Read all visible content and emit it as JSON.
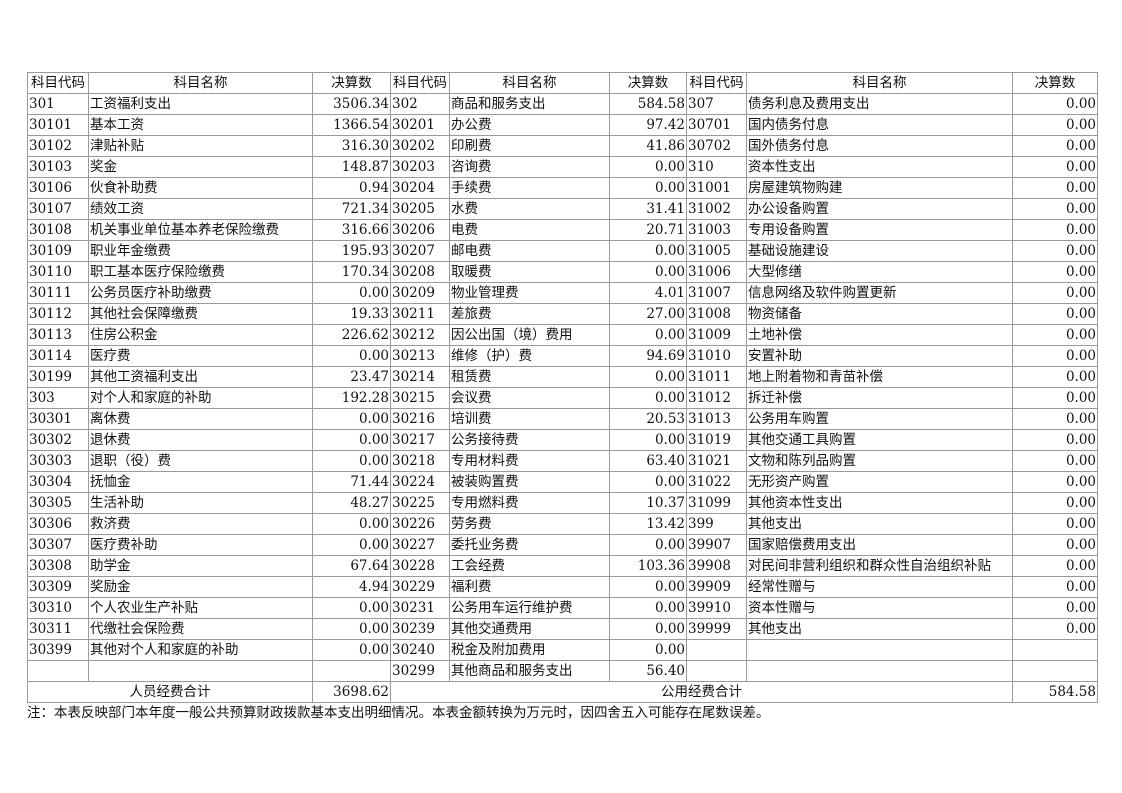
{
  "headers": {
    "code": "科目代码",
    "name": "科目名称",
    "amount": "决算数"
  },
  "rows": [
    [
      [
        "301",
        "工资福利支出",
        "3506.34"
      ],
      [
        "302",
        "商品和服务支出",
        "584.58"
      ],
      [
        "307",
        "债务利息及费用支出",
        "0.00"
      ]
    ],
    [
      [
        "30101",
        "基本工资",
        "1366.54"
      ],
      [
        "30201",
        "办公费",
        "97.42"
      ],
      [
        "30701",
        "国内债务付息",
        "0.00"
      ]
    ],
    [
      [
        "30102",
        "津贴补贴",
        "316.30"
      ],
      [
        "30202",
        "印刷费",
        "41.86"
      ],
      [
        "30702",
        "国外债务付息",
        "0.00"
      ]
    ],
    [
      [
        "30103",
        "奖金",
        "148.87"
      ],
      [
        "30203",
        "咨询费",
        "0.00"
      ],
      [
        "310",
        "资本性支出",
        "0.00"
      ]
    ],
    [
      [
        "30106",
        "伙食补助费",
        "0.94"
      ],
      [
        "30204",
        "手续费",
        "0.00"
      ],
      [
        "31001",
        "房屋建筑物购建",
        "0.00"
      ]
    ],
    [
      [
        "30107",
        "绩效工资",
        "721.34"
      ],
      [
        "30205",
        "水费",
        "31.41"
      ],
      [
        "31002",
        "办公设备购置",
        "0.00"
      ]
    ],
    [
      [
        "30108",
        "机关事业单位基本养老保险缴费",
        "316.66"
      ],
      [
        "30206",
        "电费",
        "20.71"
      ],
      [
        "31003",
        "专用设备购置",
        "0.00"
      ]
    ],
    [
      [
        "30109",
        "职业年金缴费",
        "195.93"
      ],
      [
        "30207",
        "邮电费",
        "0.00"
      ],
      [
        "31005",
        "基础设施建设",
        "0.00"
      ]
    ],
    [
      [
        "30110",
        "职工基本医疗保险缴费",
        "170.34"
      ],
      [
        "30208",
        "取暖费",
        "0.00"
      ],
      [
        "31006",
        "大型修缮",
        "0.00"
      ]
    ],
    [
      [
        "30111",
        "公务员医疗补助缴费",
        "0.00"
      ],
      [
        "30209",
        "物业管理费",
        "4.01"
      ],
      [
        "31007",
        "信息网络及软件购置更新",
        "0.00"
      ]
    ],
    [
      [
        "30112",
        "其他社会保障缴费",
        "19.33"
      ],
      [
        "30211",
        "差旅费",
        "27.00"
      ],
      [
        "31008",
        "物资储备",
        "0.00"
      ]
    ],
    [
      [
        "30113",
        "住房公积金",
        "226.62"
      ],
      [
        "30212",
        "因公出国（境）费用",
        "0.00"
      ],
      [
        "31009",
        "土地补偿",
        "0.00"
      ]
    ],
    [
      [
        "30114",
        "医疗费",
        "0.00"
      ],
      [
        "30213",
        "维修（护）费",
        "94.69"
      ],
      [
        "31010",
        "安置补助",
        "0.00"
      ]
    ],
    [
      [
        "30199",
        "其他工资福利支出",
        "23.47"
      ],
      [
        "30214",
        "租赁费",
        "0.00"
      ],
      [
        "31011",
        "地上附着物和青苗补偿",
        "0.00"
      ]
    ],
    [
      [
        "303",
        "对个人和家庭的补助",
        "192.28"
      ],
      [
        "30215",
        "会议费",
        "0.00"
      ],
      [
        "31012",
        "拆迁补偿",
        "0.00"
      ]
    ],
    [
      [
        "30301",
        "离休费",
        "0.00"
      ],
      [
        "30216",
        "培训费",
        "20.53"
      ],
      [
        "31013",
        "公务用车购置",
        "0.00"
      ]
    ],
    [
      [
        "30302",
        "退休费",
        "0.00"
      ],
      [
        "30217",
        "公务接待费",
        "0.00"
      ],
      [
        "31019",
        "其他交通工具购置",
        "0.00"
      ]
    ],
    [
      [
        "30303",
        "退职（役）费",
        "0.00"
      ],
      [
        "30218",
        "专用材料费",
        "63.40"
      ],
      [
        "31021",
        "文物和陈列品购置",
        "0.00"
      ]
    ],
    [
      [
        "30304",
        "抚恤金",
        "71.44"
      ],
      [
        "30224",
        "被装购置费",
        "0.00"
      ],
      [
        "31022",
        "无形资产购置",
        "0.00"
      ]
    ],
    [
      [
        "30305",
        "生活补助",
        "48.27"
      ],
      [
        "30225",
        "专用燃料费",
        "10.37"
      ],
      [
        "31099",
        "其他资本性支出",
        "0.00"
      ]
    ],
    [
      [
        "30306",
        "救济费",
        "0.00"
      ],
      [
        "30226",
        "劳务费",
        "13.42"
      ],
      [
        "399",
        "其他支出",
        "0.00"
      ]
    ],
    [
      [
        "30307",
        "医疗费补助",
        "0.00"
      ],
      [
        "30227",
        "委托业务费",
        "0.00"
      ],
      [
        "39907",
        "国家赔偿费用支出",
        "0.00"
      ]
    ],
    [
      [
        "30308",
        "助学金",
        "67.64"
      ],
      [
        "30228",
        "工会经费",
        "103.36"
      ],
      [
        "39908",
        "对民间非营利组织和群众性自治组织补贴",
        "0.00"
      ]
    ],
    [
      [
        "30309",
        "奖励金",
        "4.94"
      ],
      [
        "30229",
        "福利费",
        "0.00"
      ],
      [
        "39909",
        "经常性赠与",
        "0.00"
      ]
    ],
    [
      [
        "30310",
        "个人农业生产补贴",
        "0.00"
      ],
      [
        "30231",
        "公务用车运行维护费",
        "0.00"
      ],
      [
        "39910",
        "资本性赠与",
        "0.00"
      ]
    ],
    [
      [
        "30311",
        "代缴社会保险费",
        "0.00"
      ],
      [
        "30239",
        "其他交通费用",
        "0.00"
      ],
      [
        "39999",
        "其他支出",
        "0.00"
      ]
    ],
    [
      [
        "30399",
        "其他对个人和家庭的补助",
        "0.00"
      ],
      [
        "30240",
        "税金及附加费用",
        "0.00"
      ],
      [
        "",
        "",
        ""
      ]
    ],
    [
      [
        "",
        "",
        ""
      ],
      [
        "30299",
        "其他商品和服务支出",
        "56.40"
      ],
      [
        "",
        "",
        ""
      ]
    ]
  ],
  "totals": {
    "personnel_label": "人员经费合计",
    "personnel_value": "3698.62",
    "public_label": "公用经费合计",
    "public_value": "584.58"
  },
  "note": "注：本表反映部门本年度一般公共预算财政拨款基本支出明细情况。本表金额转换为万元时，因四舍五入可能存在尾数误差。"
}
